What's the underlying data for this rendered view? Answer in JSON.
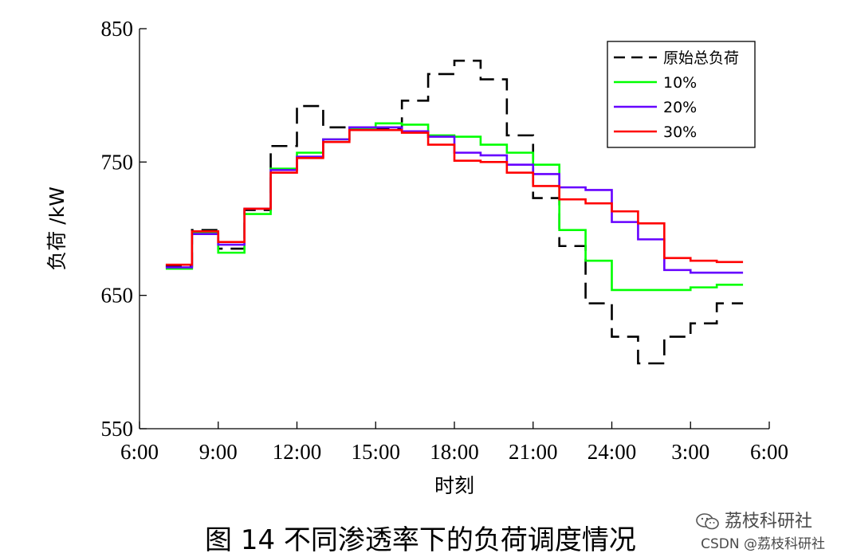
{
  "caption": "图 14  不同渗透率下的负荷调度情况",
  "watermark": {
    "brand": "荔枝科研社",
    "csdn": "CSDN @荔枝科研社",
    "icon": "wechat-icon"
  },
  "chart_data": {
    "type": "line",
    "step": true,
    "title": "",
    "xlabel": "时刻",
    "ylabel": "负荷 /kW",
    "ylim": [
      550,
      850
    ],
    "xlim": [
      6,
      30
    ],
    "y_ticks": [
      {
        "value": 550,
        "label": "550"
      },
      {
        "value": 650,
        "label": "650"
      },
      {
        "value": 750,
        "label": "750"
      },
      {
        "value": 850,
        "label": "850"
      }
    ],
    "x_ticks": [
      {
        "value": 6,
        "label": "6:00"
      },
      {
        "value": 9,
        "label": "9:00"
      },
      {
        "value": 12,
        "label": "12:00"
      },
      {
        "value": 15,
        "label": "15:00"
      },
      {
        "value": 18,
        "label": "18:00"
      },
      {
        "value": 21,
        "label": "21:00"
      },
      {
        "value": 24,
        "label": "24:00"
      },
      {
        "value": 27,
        "label": "3:00"
      },
      {
        "value": 30,
        "label": "6:00"
      }
    ],
    "grid": false,
    "legend_position": "top-right",
    "x_start": 7,
    "x_step": 1,
    "series": [
      {
        "name": "原始总负荷",
        "color": "#000000",
        "dash": "dashed",
        "values": [
          672,
          699,
          685,
          714,
          762,
          792,
          776,
          774,
          775,
          796,
          816,
          826,
          812,
          770,
          723,
          687,
          644,
          619,
          599,
          619,
          629,
          644
        ]
      },
      {
        "name": "10%",
        "color": "#00ff00",
        "dash": "solid",
        "values": [
          670,
          697,
          682,
          711,
          745,
          757,
          767,
          775,
          779,
          778,
          770,
          769,
          763,
          757,
          748,
          699,
          676,
          654,
          654,
          654,
          656,
          658
        ]
      },
      {
        "name": "20%",
        "color": "#6600ff",
        "dash": "solid",
        "values": [
          671,
          696,
          688,
          715,
          744,
          754,
          767,
          776,
          776,
          773,
          769,
          757,
          755,
          748,
          741,
          731,
          729,
          705,
          692,
          669,
          667,
          667
        ]
      },
      {
        "name": "30%",
        "color": "#ff0000",
        "dash": "solid",
        "values": [
          673,
          698,
          690,
          715,
          742,
          753,
          765,
          774,
          774,
          772,
          763,
          751,
          750,
          742,
          732,
          722,
          719,
          713,
          704,
          678,
          676,
          675
        ]
      }
    ]
  }
}
